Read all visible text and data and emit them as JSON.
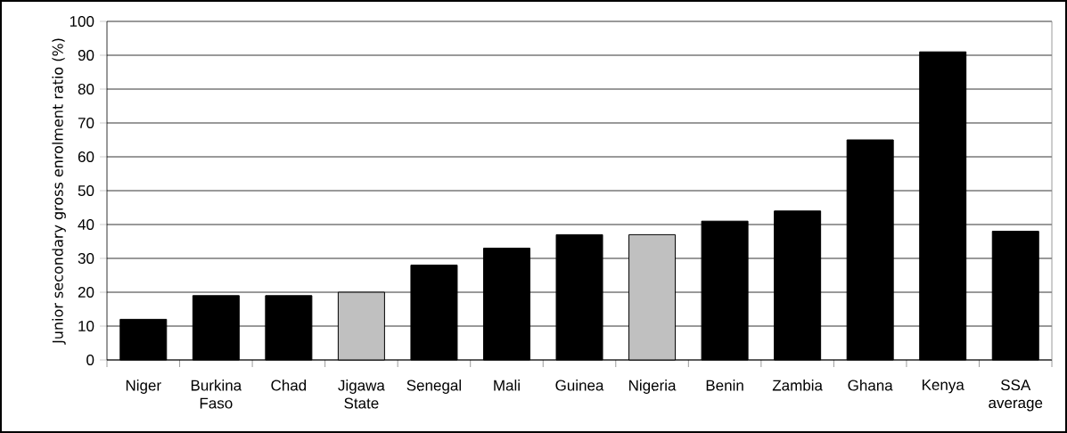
{
  "chart_data": {
    "type": "bar",
    "ylabel": "Junior secondary gross enrolment ratio (%)",
    "categories": [
      "Niger",
      "Burkina Faso",
      "Chad",
      "Jigawa State",
      "Senegal",
      "Mali",
      "Guinea",
      "Nigeria",
      "Benin",
      "Zambia",
      "Ghana",
      "Kenya",
      "SSA average"
    ],
    "values": [
      12,
      19,
      19,
      20,
      28,
      33,
      37,
      37,
      41,
      44,
      65,
      91,
      38
    ],
    "colors": [
      "#000000",
      "#000000",
      "#000000",
      "#c0c0c0",
      "#000000",
      "#000000",
      "#000000",
      "#c0c0c0",
      "#000000",
      "#000000",
      "#000000",
      "#000000",
      "#000000"
    ],
    "ylim": [
      0,
      100
    ],
    "yticks": [
      0,
      10,
      20,
      30,
      40,
      50,
      60,
      70,
      80,
      90,
      100
    ],
    "grid": "y"
  }
}
